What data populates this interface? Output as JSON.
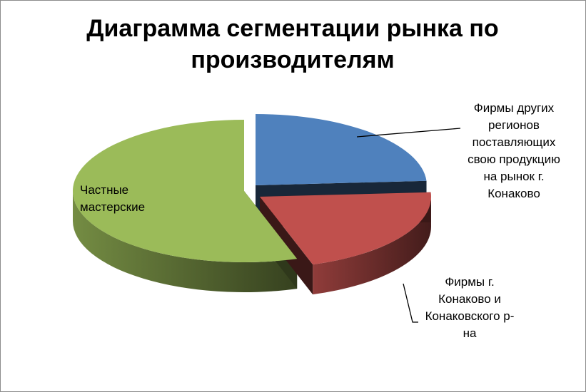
{
  "chart_data": {
    "type": "pie",
    "title_lines": [
      "Диаграмма сегментации рынка по",
      "производителям"
    ],
    "slices": [
      {
        "label": "Фирмы других\nрегионов\nпоставляющих\nсвою продукцию\nна рынок г.\nКонаково",
        "value": 24,
        "color": "#4f81bd"
      },
      {
        "label": "Фирмы г.\nКонаково и\nКонаковского р-\nна",
        "value": 21,
        "color": "#c0504d"
      },
      {
        "label": "Частные\nмастерские",
        "value": 55,
        "color": "#9bbb59"
      }
    ],
    "legend": "none",
    "exploded": true,
    "style_3d": true
  }
}
